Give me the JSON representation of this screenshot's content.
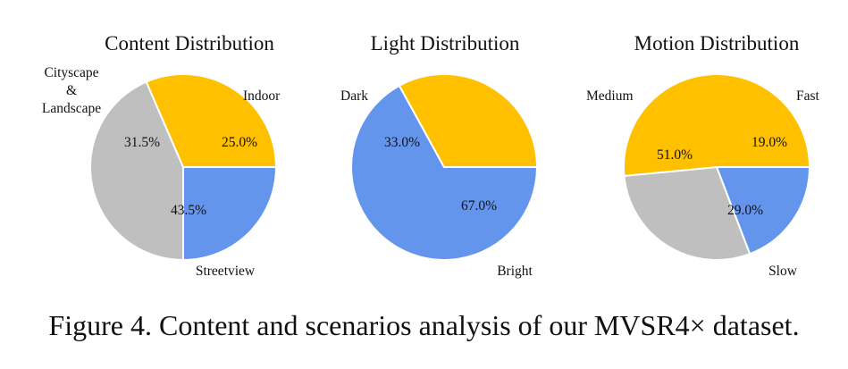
{
  "caption": "Figure 4. Content and scenarios analysis of our MVSR4× dataset.",
  "colors": {
    "blue": "#6495ED",
    "yellow": "#FFC000",
    "gray": "#BFBFBF",
    "edge": "#ffffff"
  },
  "chart_data": [
    {
      "type": "pie",
      "title": "Content Distribution",
      "slices": [
        {
          "label": "Indoor",
          "value": 25.0,
          "pct_label": "25.0%",
          "color": "#6495ED"
        },
        {
          "label": "Streetview",
          "value": 43.5,
          "pct_label": "43.5%",
          "color": "#BFBFBF"
        },
        {
          "label_lines": [
            "Cityscape",
            "&",
            "Landscape"
          ],
          "value": 31.5,
          "pct_label": "31.5%",
          "color": "#FFC000"
        }
      ]
    },
    {
      "type": "pie",
      "title": "Light Distribution",
      "slices": [
        {
          "label": "Bright",
          "value": 67.0,
          "pct_label": "67.0%",
          "color": "#6495ED"
        },
        {
          "label": "Dark",
          "value": 33.0,
          "pct_label": "33.0%",
          "color": "#FFC000"
        }
      ]
    },
    {
      "type": "pie",
      "title": "Motion Distribution",
      "slices": [
        {
          "label": "Fast",
          "value": 19.0,
          "pct_label": "19.0%",
          "color": "#6495ED"
        },
        {
          "label": "Slow",
          "value": 29.0,
          "pct_label": "29.0%",
          "color": "#BFBFBF"
        },
        {
          "label": "Medium",
          "value": 51.0,
          "pct_label": "51.0%",
          "color": "#FFC000"
        }
      ]
    }
  ]
}
